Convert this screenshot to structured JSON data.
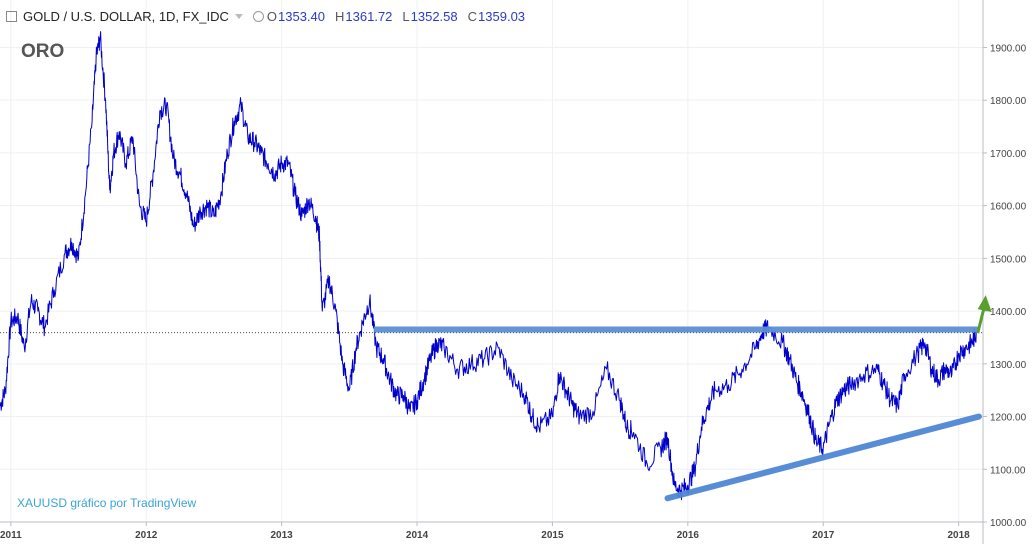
{
  "header": {
    "symbol": "GOLD / U.S. DOLLAR, 1D, FX_IDC",
    "open_label": "O",
    "open": "1353.40",
    "high_label": "H",
    "high": "1361.72",
    "low_label": "L",
    "low": "1352.58",
    "close_label": "C",
    "close": "1359.03"
  },
  "annotation_label": "ORO",
  "watermark": "XAUUSD gráfico por TradingView",
  "colors": {
    "price_line": "#0000cc",
    "resistance_line": "#5b8fd6",
    "support_line": "#4f86d4",
    "breakout_arrow": "#5a9e2f",
    "grid": "#eef0f3",
    "axis_text": "#444444"
  },
  "chart_data": {
    "type": "line",
    "title": "",
    "xlabel": "",
    "ylabel": "",
    "ylim": [
      1000,
      1990
    ],
    "xlim": [
      2010.92,
      2018.18
    ],
    "grid": true,
    "y_axis_position": "right",
    "yticks": [
      "1000.00",
      "1100.00",
      "1200.00",
      "1300.00",
      "1400.00",
      "1500.00",
      "1600.00",
      "1700.00",
      "1800.00",
      "1900.00"
    ],
    "xticks": [
      "2011",
      "2012",
      "2013",
      "2014",
      "2015",
      "2016",
      "2017",
      "2018"
    ],
    "series": [
      {
        "name": "",
        "x": [
          2010.92,
          2010.96,
          2011.0,
          2011.05,
          2011.1,
          2011.15,
          2011.2,
          2011.25,
          2011.32,
          2011.4,
          2011.45,
          2011.5,
          2011.55,
          2011.6,
          2011.63,
          2011.66,
          2011.7,
          2011.73,
          2011.76,
          2011.8,
          2011.85,
          2011.9,
          2011.95,
          2012.0,
          2012.05,
          2012.1,
          2012.15,
          2012.2,
          2012.25,
          2012.3,
          2012.35,
          2012.4,
          2012.45,
          2012.5,
          2012.55,
          2012.6,
          2012.65,
          2012.7,
          2012.75,
          2012.8,
          2012.85,
          2012.9,
          2012.95,
          2013.0,
          2013.05,
          2013.1,
          2013.15,
          2013.2,
          2013.25,
          2013.28,
          2013.3,
          2013.35,
          2013.4,
          2013.45,
          2013.5,
          2013.55,
          2013.6,
          2013.65,
          2013.7,
          2013.75,
          2013.8,
          2013.85,
          2013.9,
          2013.95,
          2014.0,
          2014.05,
          2014.1,
          2014.15,
          2014.2,
          2014.3,
          2014.4,
          2014.5,
          2014.6,
          2014.7,
          2014.8,
          2014.85,
          2014.9,
          2015.0,
          2015.05,
          2015.1,
          2015.15,
          2015.2,
          2015.3,
          2015.4,
          2015.5,
          2015.55,
          2015.6,
          2015.7,
          2015.8,
          2015.85,
          2015.9,
          2015.95,
          2016.0,
          2016.05,
          2016.1,
          2016.15,
          2016.2,
          2016.3,
          2016.4,
          2016.5,
          2016.55,
          2016.6,
          2016.7,
          2016.75,
          2016.8,
          2016.85,
          2016.9,
          2016.95,
          2017.0,
          2017.05,
          2017.1,
          2017.15,
          2017.2,
          2017.3,
          2017.4,
          2017.45,
          2017.5,
          2017.55,
          2017.6,
          2017.7,
          2017.75,
          2017.8,
          2017.85,
          2017.9,
          2017.95,
          2018.0,
          2018.05,
          2018.1,
          2018.13
        ],
        "y": [
          1220,
          1250,
          1380,
          1390,
          1330,
          1420,
          1400,
          1370,
          1440,
          1510,
          1530,
          1500,
          1620,
          1760,
          1880,
          1920,
          1800,
          1630,
          1700,
          1740,
          1680,
          1730,
          1600,
          1570,
          1660,
          1780,
          1790,
          1690,
          1660,
          1620,
          1560,
          1590,
          1600,
          1580,
          1620,
          1700,
          1760,
          1790,
          1730,
          1720,
          1700,
          1680,
          1660,
          1680,
          1680,
          1620,
          1580,
          1610,
          1580,
          1540,
          1400,
          1460,
          1400,
          1300,
          1250,
          1330,
          1380,
          1420,
          1330,
          1310,
          1270,
          1240,
          1240,
          1210,
          1230,
          1270,
          1310,
          1340,
          1330,
          1290,
          1300,
          1310,
          1330,
          1270,
          1240,
          1200,
          1180,
          1200,
          1280,
          1250,
          1220,
          1200,
          1210,
          1290,
          1230,
          1180,
          1170,
          1110,
          1140,
          1160,
          1070,
          1060,
          1070,
          1100,
          1180,
          1220,
          1250,
          1260,
          1290,
          1330,
          1360,
          1370,
          1340,
          1310,
          1270,
          1240,
          1200,
          1150,
          1140,
          1190,
          1230,
          1250,
          1260,
          1280,
          1290,
          1260,
          1230,
          1220,
          1280,
          1320,
          1340,
          1290,
          1270,
          1290,
          1280,
          1320,
          1330,
          1340,
          1359
        ]
      }
    ],
    "annotations": [
      {
        "type": "horizontal_line",
        "y": 1365,
        "x_start": 2013.68,
        "x_end": 2018.15
      },
      {
        "type": "trend_line",
        "x_start": 2015.85,
        "y_start": 1045,
        "x_end": 2018.15,
        "y_end": 1200
      },
      {
        "type": "arrow_up",
        "x": 2018.2,
        "y": 1400
      },
      {
        "type": "current_price_line",
        "y": 1359.03
      }
    ]
  }
}
